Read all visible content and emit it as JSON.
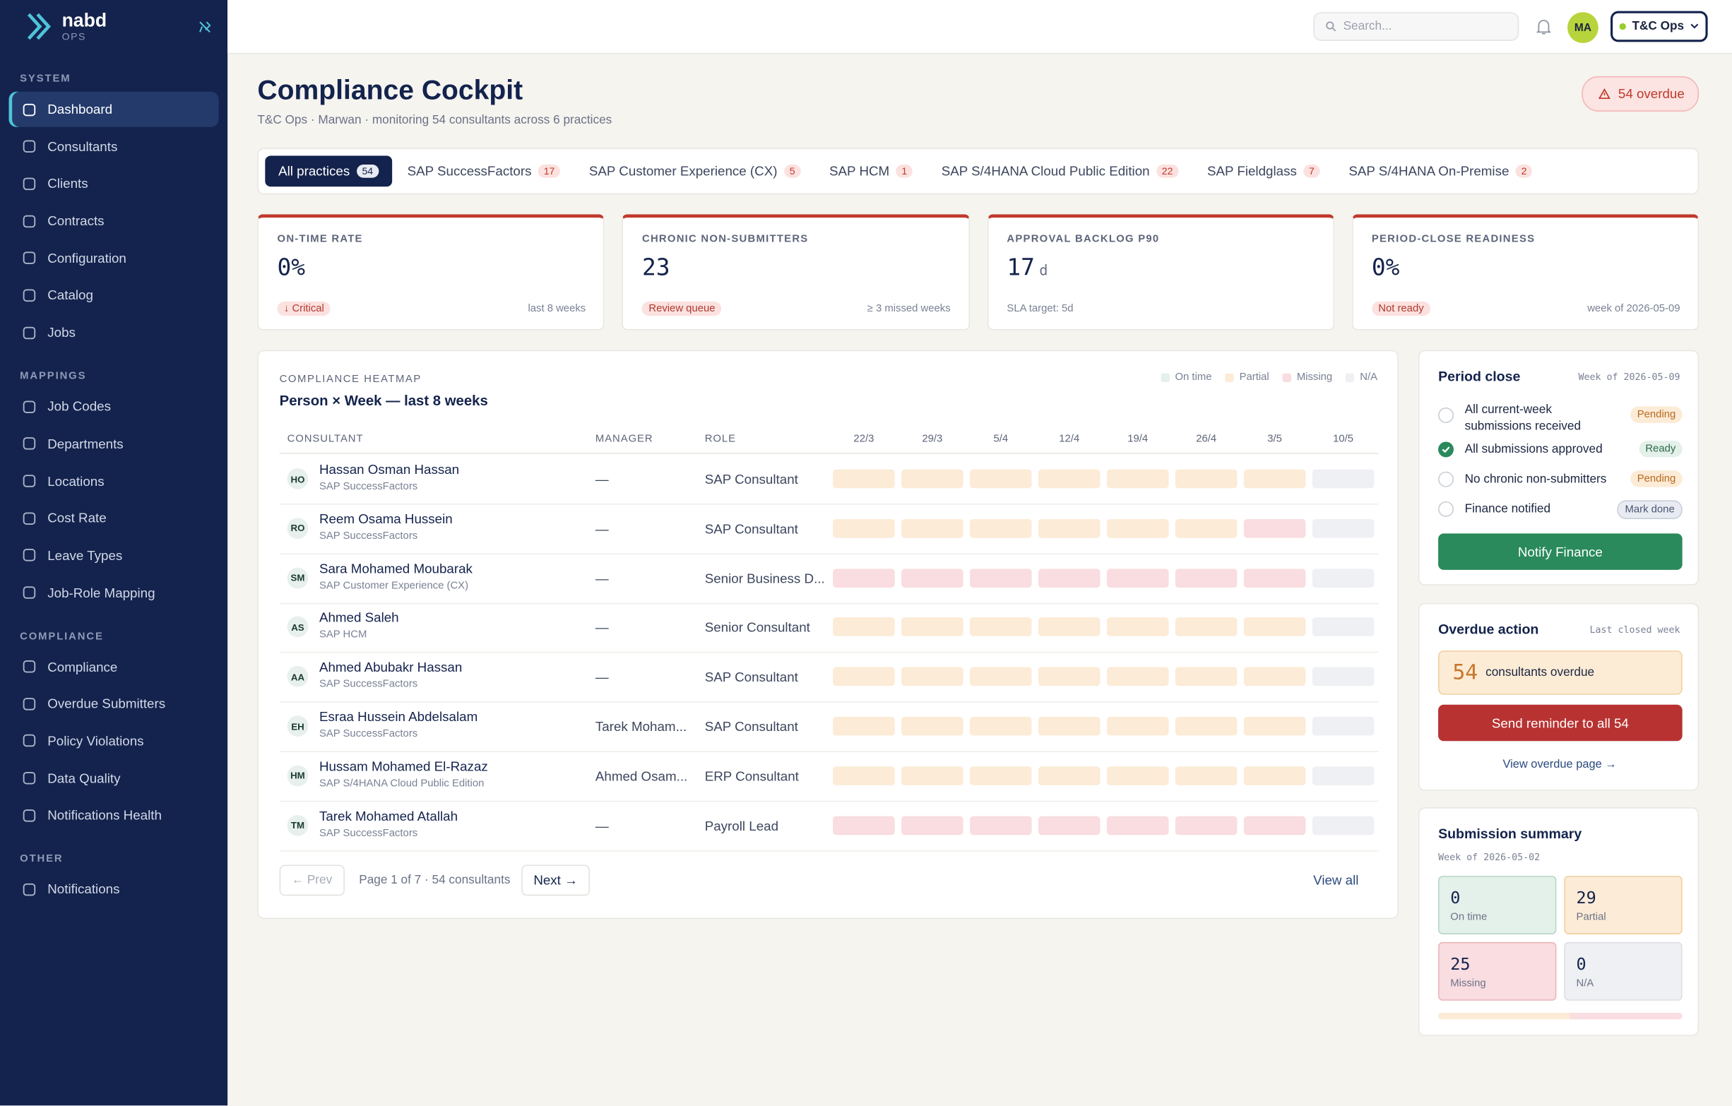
{
  "sidebar": {
    "brand": "nabd",
    "brand_sub": "OPS",
    "sections": [
      {
        "title": "SYSTEM",
        "items": [
          "Dashboard",
          "Consultants",
          "Clients",
          "Contracts",
          "Configuration",
          "Catalog",
          "Jobs"
        ]
      },
      {
        "title": "MAPPINGS",
        "items": [
          "Job Codes",
          "Departments",
          "Locations",
          "Cost Rate",
          "Leave Types",
          "Job-Role Mapping"
        ]
      },
      {
        "title": "COMPLIANCE",
        "items": [
          "Compliance",
          "Overdue Submitters",
          "Policy Violations",
          "Data Quality",
          "Notifications Health"
        ]
      },
      {
        "title": "OTHER",
        "items": [
          "Notifications"
        ]
      }
    ],
    "active": "Dashboard"
  },
  "topbar": {
    "search_placeholder": "Search...",
    "avatar": "MA",
    "workspace": "T&C Ops"
  },
  "header": {
    "title": "Compliance Cockpit",
    "subtitle": "T&C Ops · Marwan · monitoring 54 consultants across 6 practices",
    "badge": "54 overdue"
  },
  "tabs": [
    {
      "name": "All practices",
      "count": "54"
    },
    {
      "name": "SAP SuccessFactors",
      "count": "17"
    },
    {
      "name": "SAP Customer Experience (CX)",
      "count": "5"
    },
    {
      "name": "SAP HCM",
      "count": "1"
    },
    {
      "name": "SAP S/4HANA Cloud Public Edition",
      "count": "22"
    },
    {
      "name": "SAP Fieldglass",
      "count": "7"
    },
    {
      "name": "SAP S/4HANA On-Premise",
      "count": "2"
    }
  ],
  "kpis": [
    {
      "label": "ON-TIME RATE",
      "value": "0%",
      "tag": "↓ Critical",
      "note": "last 8 weeks"
    },
    {
      "label": "CHRONIC NON-SUBMITTERS",
      "value": "23",
      "tag": "Review queue",
      "note": "≥ 3 missed weeks"
    },
    {
      "label": "APPROVAL BACKLOG P90",
      "value": "17",
      "unit": "d",
      "note": "SLA target: 5d"
    },
    {
      "label": "PERIOD-CLOSE READINESS",
      "value": "0%",
      "tag": "Not ready",
      "note": "week of 2026-05-09"
    }
  ],
  "heatmap": {
    "kicker": "COMPLIANCE HEATMAP",
    "title": "Person × Week — last 8 weeks",
    "legend": [
      "On time",
      "Partial",
      "Missing",
      "N/A"
    ],
    "columns": [
      "CONSULTANT",
      "MANAGER",
      "ROLE"
    ],
    "weeks": [
      "22/3",
      "29/3",
      "5/4",
      "12/4",
      "19/4",
      "26/4",
      "3/5",
      "10/5"
    ],
    "rows": [
      {
        "initials": "HO",
        "name": "Hassan Osman Hassan",
        "practice": "SAP SuccessFactors",
        "manager": "—",
        "role": "SAP Consultant",
        "cells": [
          "Partial",
          "Partial",
          "Partial",
          "Partial",
          "Partial",
          "Partial",
          "Partial",
          "N/A"
        ]
      },
      {
        "initials": "RO",
        "name": "Reem Osama Hussein",
        "practice": "SAP SuccessFactors",
        "manager": "—",
        "role": "SAP Consultant",
        "cells": [
          "Partial",
          "Partial",
          "Partial",
          "Partial",
          "Partial",
          "Partial",
          "Missing",
          "N/A"
        ]
      },
      {
        "initials": "SM",
        "name": "Sara Mohamed Moubarak",
        "practice": "SAP Customer Experience (CX)",
        "manager": "—",
        "role": "Senior Business D...",
        "cells": [
          "Missing",
          "Missing",
          "Missing",
          "Missing",
          "Missing",
          "Missing",
          "Missing",
          "N/A"
        ]
      },
      {
        "initials": "AS",
        "name": "Ahmed Saleh",
        "practice": "SAP HCM",
        "manager": "—",
        "role": "Senior Consultant",
        "cells": [
          "Partial",
          "Partial",
          "Partial",
          "Partial",
          "Partial",
          "Partial",
          "Partial",
          "N/A"
        ]
      },
      {
        "initials": "AA",
        "name": "Ahmed Abubakr Hassan",
        "practice": "SAP SuccessFactors",
        "manager": "—",
        "role": "SAP Consultant",
        "cells": [
          "Partial",
          "Partial",
          "Partial",
          "Partial",
          "Partial",
          "Partial",
          "Partial",
          "N/A"
        ]
      },
      {
        "initials": "EH",
        "name": "Esraa Hussein Abdelsalam",
        "practice": "SAP SuccessFactors",
        "manager": "Tarek Moham...",
        "role": "SAP Consultant",
        "cells": [
          "Partial",
          "Partial",
          "Partial",
          "Partial",
          "Partial",
          "Partial",
          "Partial",
          "N/A"
        ]
      },
      {
        "initials": "HM",
        "name": "Hussam Mohamed El-Razaz",
        "practice": "SAP S/4HANA Cloud Public Edition",
        "manager": "Ahmed Osam...",
        "role": "ERP Consultant",
        "cells": [
          "Partial",
          "Partial",
          "Partial",
          "Partial",
          "Partial",
          "Partial",
          "Partial",
          "N/A"
        ]
      },
      {
        "initials": "TM",
        "name": "Tarek Mohamed Atallah",
        "practice": "SAP SuccessFactors",
        "manager": "—",
        "role": "Payroll Lead",
        "cells": [
          "Missing",
          "Missing",
          "Missing",
          "Missing",
          "Missing",
          "Missing",
          "Missing",
          "N/A"
        ]
      }
    ],
    "prev": "← Prev",
    "page_info": "Page 1 of 7 · 54 consultants",
    "next": "Next →",
    "view_all": "View all"
  },
  "period_close": {
    "title": "Period close",
    "week": "Week of 2026-05-09",
    "items": [
      {
        "text": "All current-week submissions received",
        "status": "Pending",
        "checked": false
      },
      {
        "text": "All submissions approved",
        "status": "Ready",
        "checked": true
      },
      {
        "text": "No chronic non-submitters",
        "status": "Pending",
        "checked": false
      },
      {
        "text": "Finance notified",
        "status": "Mark done",
        "checked": false
      }
    ],
    "button": "Notify Finance"
  },
  "overdue": {
    "title": "Overdue action",
    "week": "Last closed week",
    "count": "54",
    "count_label": "consultants overdue",
    "button": "Send reminder to all 54",
    "link": "View overdue page →"
  },
  "summary": {
    "title": "Submission summary",
    "week": "Week of 2026-05-02",
    "tiles": [
      {
        "value": 0,
        "label": "On time"
      },
      {
        "value": 29,
        "label": "Partial"
      },
      {
        "value": 25,
        "label": "Missing"
      },
      {
        "value": 0,
        "label": "N/A"
      }
    ]
  }
}
